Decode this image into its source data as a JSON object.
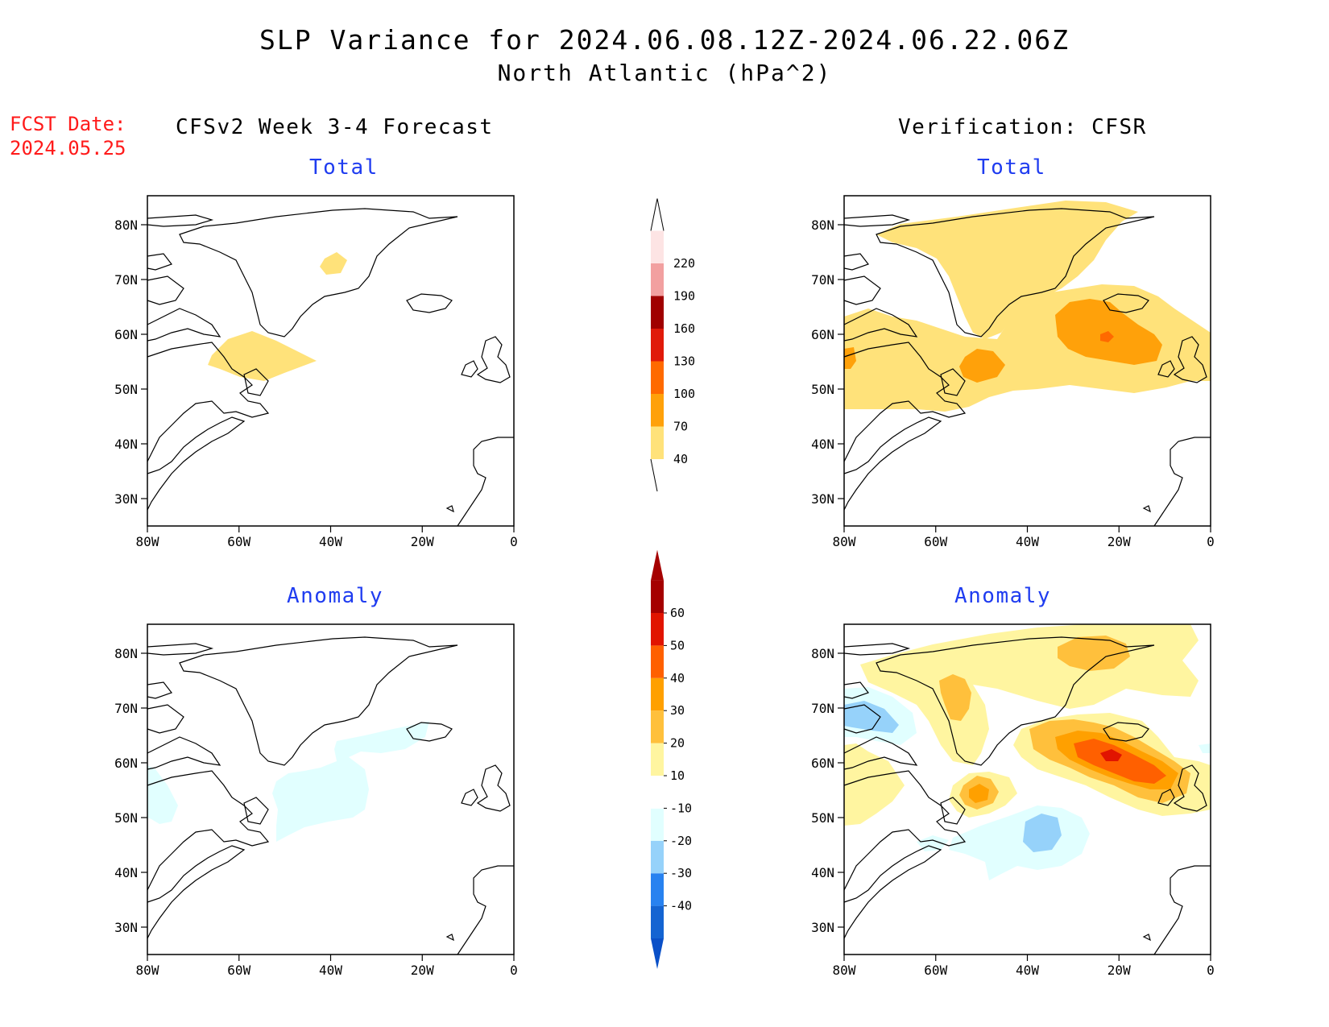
{
  "title": "SLP Variance for 2024.06.08.12Z-2024.06.22.06Z",
  "subtitle": "North Atlantic (hPa^2)",
  "fcst_date_label": "FCST Date:",
  "fcst_date": "2024.05.25",
  "left_column_title": "CFSv2 Week 3-4 Forecast",
  "right_column_title": "Verification: CFSR",
  "panels": {
    "total_label": "Total",
    "anomaly_label": "Anomaly"
  },
  "axes": {
    "lat_ticks": [
      "80N",
      "70N",
      "60N",
      "50N",
      "40N",
      "30N"
    ],
    "lon_ticks": [
      "80W",
      "60W",
      "40W",
      "20W",
      "0"
    ]
  },
  "colorbars": {
    "total": {
      "levels": [
        "40",
        "70",
        "100",
        "130",
        "160",
        "190",
        "220"
      ],
      "colors": [
        "#ffe27a",
        "#ffa10a",
        "#ff6a00",
        "#e01a0a",
        "#a00000",
        "#f2a0a0",
        "#fde4e4"
      ]
    },
    "anomaly": {
      "levels": [
        "-40",
        "-30",
        "-20",
        "-10",
        "10",
        "20",
        "30",
        "40",
        "50",
        "60"
      ],
      "colors": [
        "#1464d2",
        "#2882f0",
        "#96d2fa",
        "#e1ffff",
        "#ffffff",
        "#fff5a0",
        "#ffc03c",
        "#ffa000",
        "#ff6000",
        "#e11400",
        "#a50000"
      ]
    }
  },
  "fill_colors": {
    "v40": "#ffe27a",
    "v70": "#ffa10a",
    "a10": "#fff5a0",
    "a20": "#ffc03c",
    "a30": "#ffa000",
    "a40": "#ff6000",
    "a50": "#e11400",
    "n10": "#e1ffff",
    "n20": "#96d2fa",
    "coast": "#000000"
  }
}
